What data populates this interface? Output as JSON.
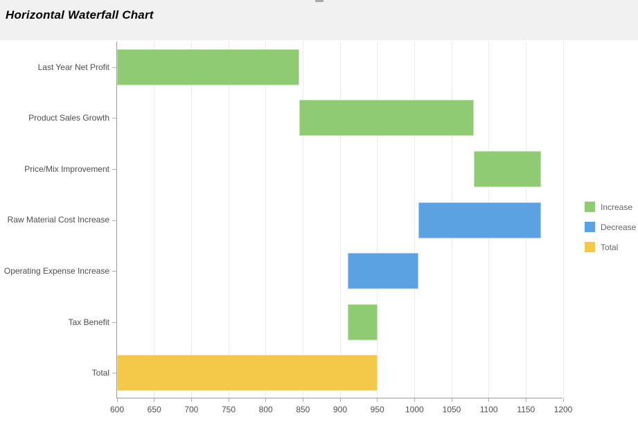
{
  "header": {
    "title": "Horizontal Waterfall Chart"
  },
  "colors": {
    "header_bg": "#F1F1F1",
    "axis_line": "#9A9A9A",
    "tick": "#ABABAB",
    "gridline": "#ECECEC",
    "axis_label": "#4D4D4D",
    "legend_label": "#666666",
    "title": "#000000",
    "background": "#FFFFFF",
    "notch": "#A9A9A9",
    "increase": "#8ECB72",
    "decrease": "#5BA2E3",
    "total": "#F4C849"
  },
  "chart_data": {
    "type": "bar",
    "subtype": "horizontal-waterfall",
    "title": "Horizontal Waterfall Chart",
    "categories": [
      "Last Year Net Profit",
      "Product Sales Growth",
      "Price/Mix Improvement",
      "Raw Material Cost Increase",
      "Operating Expense Increase",
      "Tax Benefit",
      "Total"
    ],
    "values": [
      845,
      235,
      90,
      -165,
      -95,
      40,
      950
    ],
    "value_kinds": [
      "increase",
      "increase",
      "increase",
      "decrease",
      "decrease",
      "increase",
      "total"
    ],
    "segments": [
      {
        "category": "Last Year Net Profit",
        "from": 600,
        "to": 845,
        "kind": "increase"
      },
      {
        "category": "Product Sales Growth",
        "from": 845,
        "to": 1080,
        "kind": "increase"
      },
      {
        "category": "Price/Mix Improvement",
        "from": 1080,
        "to": 1170,
        "kind": "increase"
      },
      {
        "category": "Raw Material Cost Increase",
        "from": 1005,
        "to": 1170,
        "kind": "decrease"
      },
      {
        "category": "Operating Expense Increase",
        "from": 910,
        "to": 1005,
        "kind": "decrease"
      },
      {
        "category": "Tax Benefit",
        "from": 910,
        "to": 950,
        "kind": "increase"
      },
      {
        "category": "Total",
        "from": 600,
        "to": 950,
        "kind": "total"
      }
    ],
    "xlabel": "",
    "ylabel": "",
    "xlim": [
      600,
      1200
    ],
    "xticks": [
      600,
      650,
      700,
      750,
      800,
      850,
      900,
      950,
      1000,
      1050,
      1100,
      1150,
      1200
    ],
    "grid": "vertical-only",
    "legend_position": "right",
    "legend": [
      {
        "label": "Increase",
        "kind": "increase",
        "color": "#8ECB72"
      },
      {
        "label": "Decrease",
        "kind": "decrease",
        "color": "#5BA2E3"
      },
      {
        "label": "Total",
        "kind": "total",
        "color": "#F4C849"
      }
    ]
  }
}
